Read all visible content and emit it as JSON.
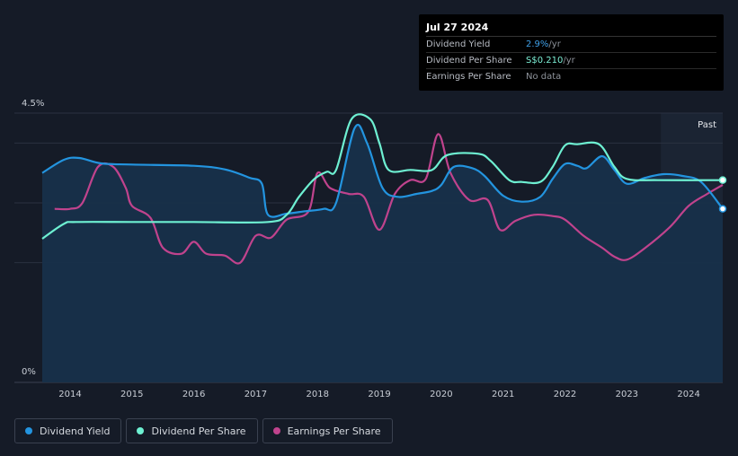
{
  "tooltip": {
    "date": "Jul 27 2024",
    "rows": [
      {
        "label": "Dividend Yield",
        "value": "2.9%",
        "unit": " /yr"
      },
      {
        "label": "Dividend Per Share",
        "value": "S$0.210",
        "unit": " /yr"
      },
      {
        "label": "Earnings Per Share",
        "value": "No data",
        "unit": ""
      }
    ]
  },
  "colors": {
    "background": "#151b27",
    "dividend_yield": "#2394df",
    "dividend_per_share": "#6ef0d2",
    "earnings_per_share": "#c0438d",
    "area_fill": "#17304a"
  },
  "legend": [
    {
      "label": "Dividend Yield",
      "color": "#2394df"
    },
    {
      "label": "Dividend Per Share",
      "color": "#6ef0d2"
    },
    {
      "label": "Earnings Per Share",
      "color": "#c0438d"
    }
  ],
  "chart_data": {
    "type": "line",
    "past_label": "Past",
    "x_ticks": [
      "2014",
      "2015",
      "2016",
      "2017",
      "2018",
      "2019",
      "2020",
      "2021",
      "2022",
      "2023",
      "2024"
    ],
    "x_range": [
      2013.55,
      2024.55
    ],
    "y_ticks": [
      "0%",
      "4.5%"
    ],
    "y_range": [
      0,
      4.5
    ],
    "forecast_start": 2023.55,
    "series": [
      {
        "name": "Dividend Yield",
        "unit": "%",
        "points": [
          [
            2013.55,
            3.5
          ],
          [
            2013.9,
            3.72
          ],
          [
            2014.15,
            3.75
          ],
          [
            2014.5,
            3.66
          ],
          [
            2015.0,
            3.64
          ],
          [
            2016.0,
            3.62
          ],
          [
            2016.5,
            3.56
          ],
          [
            2016.9,
            3.42
          ],
          [
            2017.1,
            3.32
          ],
          [
            2017.2,
            2.8
          ],
          [
            2017.5,
            2.82
          ],
          [
            2017.8,
            2.86
          ],
          [
            2018.1,
            2.9
          ],
          [
            2018.3,
            3.0
          ],
          [
            2018.6,
            4.25
          ],
          [
            2018.8,
            4.0
          ],
          [
            2019.05,
            3.25
          ],
          [
            2019.3,
            3.1
          ],
          [
            2019.6,
            3.15
          ],
          [
            2019.85,
            3.2
          ],
          [
            2020.0,
            3.3
          ],
          [
            2020.2,
            3.6
          ],
          [
            2020.5,
            3.58
          ],
          [
            2020.7,
            3.45
          ],
          [
            2021.0,
            3.12
          ],
          [
            2021.3,
            3.02
          ],
          [
            2021.6,
            3.1
          ],
          [
            2021.8,
            3.4
          ],
          [
            2022.0,
            3.65
          ],
          [
            2022.2,
            3.62
          ],
          [
            2022.35,
            3.58
          ],
          [
            2022.6,
            3.78
          ],
          [
            2022.8,
            3.55
          ],
          [
            2023.0,
            3.32
          ],
          [
            2023.3,
            3.42
          ],
          [
            2023.6,
            3.48
          ],
          [
            2023.9,
            3.45
          ],
          [
            2024.2,
            3.35
          ],
          [
            2024.55,
            2.9
          ]
        ]
      },
      {
        "name": "Dividend Per Share",
        "unit": "S$",
        "points": [
          [
            2013.55,
            2.4
          ],
          [
            2013.9,
            2.65
          ],
          [
            2014.1,
            2.68
          ],
          [
            2015.0,
            2.68
          ],
          [
            2016.0,
            2.68
          ],
          [
            2017.2,
            2.68
          ],
          [
            2017.5,
            2.8
          ],
          [
            2017.7,
            3.1
          ],
          [
            2017.95,
            3.4
          ],
          [
            2018.15,
            3.52
          ],
          [
            2018.3,
            3.55
          ],
          [
            2018.55,
            4.4
          ],
          [
            2018.85,
            4.4
          ],
          [
            2019.0,
            4.0
          ],
          [
            2019.15,
            3.55
          ],
          [
            2019.5,
            3.55
          ],
          [
            2019.85,
            3.55
          ],
          [
            2020.1,
            3.8
          ],
          [
            2020.6,
            3.82
          ],
          [
            2020.8,
            3.7
          ],
          [
            2021.1,
            3.38
          ],
          [
            2021.3,
            3.35
          ],
          [
            2021.6,
            3.35
          ],
          [
            2021.8,
            3.6
          ],
          [
            2022.0,
            3.96
          ],
          [
            2022.2,
            3.98
          ],
          [
            2022.55,
            3.98
          ],
          [
            2022.8,
            3.6
          ],
          [
            2023.0,
            3.4
          ],
          [
            2023.5,
            3.38
          ],
          [
            2024.55,
            3.38
          ]
        ]
      },
      {
        "name": "Earnings Per Share",
        "unit": "",
        "points": [
          [
            2013.75,
            2.9
          ],
          [
            2014.0,
            2.9
          ],
          [
            2014.2,
            3.0
          ],
          [
            2014.45,
            3.6
          ],
          [
            2014.7,
            3.6
          ],
          [
            2014.9,
            3.25
          ],
          [
            2015.0,
            2.95
          ],
          [
            2015.3,
            2.75
          ],
          [
            2015.5,
            2.25
          ],
          [
            2015.8,
            2.15
          ],
          [
            2016.0,
            2.35
          ],
          [
            2016.2,
            2.15
          ],
          [
            2016.5,
            2.12
          ],
          [
            2016.75,
            2.0
          ],
          [
            2017.0,
            2.45
          ],
          [
            2017.25,
            2.42
          ],
          [
            2017.5,
            2.72
          ],
          [
            2017.85,
            2.85
          ],
          [
            2018.0,
            3.5
          ],
          [
            2018.2,
            3.25
          ],
          [
            2018.5,
            3.15
          ],
          [
            2018.75,
            3.1
          ],
          [
            2019.0,
            2.55
          ],
          [
            2019.25,
            3.15
          ],
          [
            2019.5,
            3.38
          ],
          [
            2019.75,
            3.4
          ],
          [
            2019.95,
            4.15
          ],
          [
            2020.15,
            3.5
          ],
          [
            2020.45,
            3.05
          ],
          [
            2020.75,
            3.05
          ],
          [
            2020.95,
            2.55
          ],
          [
            2021.2,
            2.7
          ],
          [
            2021.5,
            2.8
          ],
          [
            2021.8,
            2.78
          ],
          [
            2022.0,
            2.72
          ],
          [
            2022.3,
            2.45
          ],
          [
            2022.6,
            2.25
          ],
          [
            2022.8,
            2.1
          ],
          [
            2023.0,
            2.05
          ],
          [
            2023.3,
            2.25
          ],
          [
            2023.7,
            2.6
          ],
          [
            2024.0,
            2.95
          ],
          [
            2024.3,
            3.15
          ],
          [
            2024.55,
            3.3
          ]
        ]
      }
    ]
  }
}
